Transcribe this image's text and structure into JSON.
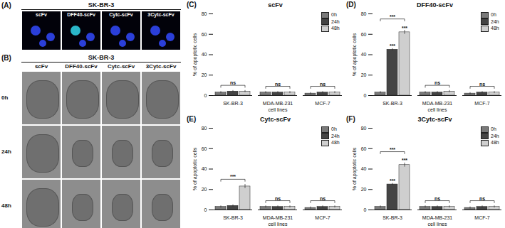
{
  "image_panels": [
    {
      "panel_label": "(A)",
      "title": "SK-BR-3",
      "columns": [
        "scFv",
        "DFF40-scFv",
        "Cytc-scFv",
        "3Cytc-scFv"
      ]
    },
    {
      "panel_label": "(B)",
      "title": "SK-BR-3",
      "columns": [
        "scFv",
        "DFF40-scFv",
        "Cytc-scFv",
        "3Cytc-scFv"
      ],
      "rows": [
        "0h",
        "24h",
        "48h"
      ]
    }
  ],
  "chart_data": [
    {
      "type": "bar",
      "panel_label": "(C)",
      "title": "scFv",
      "x_label": "cell lines",
      "y_label": "% of apoptotic cells",
      "categories": [
        "SK-BR-3",
        "MDA-MB-231",
        "MCF-7"
      ],
      "series": [
        {
          "name": "0h",
          "color": "#7a7a7a",
          "values": [
            3,
            3,
            2
          ],
          "errors": [
            1,
            1,
            1
          ]
        },
        {
          "name": "24h",
          "color": "#444444",
          "values": [
            4,
            3,
            3
          ],
          "errors": [
            1,
            1,
            1
          ]
        },
        {
          "name": "48h",
          "color": "#cfcfcf",
          "values": [
            4,
            3,
            3
          ],
          "errors": [
            1,
            1,
            1
          ]
        }
      ],
      "ylim": [
        0,
        80
      ],
      "yticks": [
        0,
        20,
        40,
        60,
        80
      ],
      "legend": "top-right",
      "annotations": [
        {
          "category": "SK-BR-3",
          "text": "ns"
        },
        {
          "category": "MDA-MB-231",
          "text": "ns"
        },
        {
          "category": "MCF-7",
          "text": "ns"
        }
      ]
    },
    {
      "type": "bar",
      "panel_label": "(D)",
      "title": "DFF40-scFv",
      "x_label": "cell lines",
      "y_label": "% of apoptotic cells",
      "categories": [
        "SK-BR-3",
        "MDA-MB-231",
        "MCF-7"
      ],
      "series": [
        {
          "name": "0h",
          "color": "#7a7a7a",
          "values": [
            3,
            3,
            2
          ],
          "errors": [
            1,
            1,
            1
          ]
        },
        {
          "name": "24h",
          "color": "#444444",
          "values": [
            45,
            3,
            3
          ],
          "errors": [
            1,
            1,
            1
          ]
        },
        {
          "name": "48h",
          "color": "#cfcfcf",
          "values": [
            62,
            4,
            3
          ],
          "errors": [
            2,
            1,
            1
          ]
        }
      ],
      "ylim": [
        0,
        80
      ],
      "yticks": [
        0,
        20,
        40,
        60,
        80
      ],
      "legend": "top-right",
      "annotations": [
        {
          "category": "SK-BR-3",
          "text": "***"
        },
        {
          "category": "SK-BR-3",
          "series": "24h",
          "text": "***"
        },
        {
          "category": "SK-BR-3",
          "series": "48h",
          "text": "***"
        },
        {
          "category": "MDA-MB-231",
          "text": "ns"
        },
        {
          "category": "MCF-7",
          "text": "ns"
        }
      ]
    },
    {
      "type": "bar",
      "panel_label": "(E)",
      "title": "Cytc-scFv",
      "x_label": "cell lines",
      "y_label": "% of apoptotic cells",
      "categories": [
        "SK-BR-3",
        "MDA-MB-231",
        "MCF-7"
      ],
      "series": [
        {
          "name": "0h",
          "color": "#7a7a7a",
          "values": [
            3,
            3,
            2
          ],
          "errors": [
            1,
            1,
            1
          ]
        },
        {
          "name": "24h",
          "color": "#444444",
          "values": [
            4,
            3,
            3
          ],
          "errors": [
            1,
            1,
            1
          ]
        },
        {
          "name": "48h",
          "color": "#cfcfcf",
          "values": [
            23,
            3,
            3
          ],
          "errors": [
            2,
            1,
            1
          ]
        }
      ],
      "ylim": [
        0,
        80
      ],
      "yticks": [
        0,
        20,
        40,
        60,
        80
      ],
      "legend": "top-right",
      "annotations": [
        {
          "category": "SK-BR-3",
          "text": "***"
        },
        {
          "category": "MDA-MB-231",
          "text": "ns"
        },
        {
          "category": "MCF-7",
          "text": "ns"
        }
      ]
    },
    {
      "type": "bar",
      "panel_label": "(F)",
      "title": "3Cytc-scFv",
      "x_label": "cell lines",
      "y_label": "% of apoptotic cells",
      "categories": [
        "SK-BR-3",
        "MDA-MB-231",
        "MCF-7"
      ],
      "series": [
        {
          "name": "0h",
          "color": "#7a7a7a",
          "values": [
            3,
            3,
            2
          ],
          "errors": [
            1,
            1,
            1
          ]
        },
        {
          "name": "24h",
          "color": "#444444",
          "values": [
            25,
            3,
            3
          ],
          "errors": [
            1,
            1,
            1
          ]
        },
        {
          "name": "48h",
          "color": "#cfcfcf",
          "values": [
            44,
            3,
            3
          ],
          "errors": [
            2,
            1,
            1
          ]
        }
      ],
      "ylim": [
        0,
        80
      ],
      "yticks": [
        0,
        20,
        40,
        60,
        80
      ],
      "legend": "top-right",
      "annotations": [
        {
          "category": "SK-BR-3",
          "text": "***"
        },
        {
          "category": "SK-BR-3",
          "series": "24h",
          "text": "***"
        },
        {
          "category": "SK-BR-3",
          "series": "48h",
          "text": "***"
        },
        {
          "category": "MDA-MB-231",
          "text": "ns"
        },
        {
          "category": "MCF-7",
          "text": "ns"
        }
      ]
    }
  ]
}
